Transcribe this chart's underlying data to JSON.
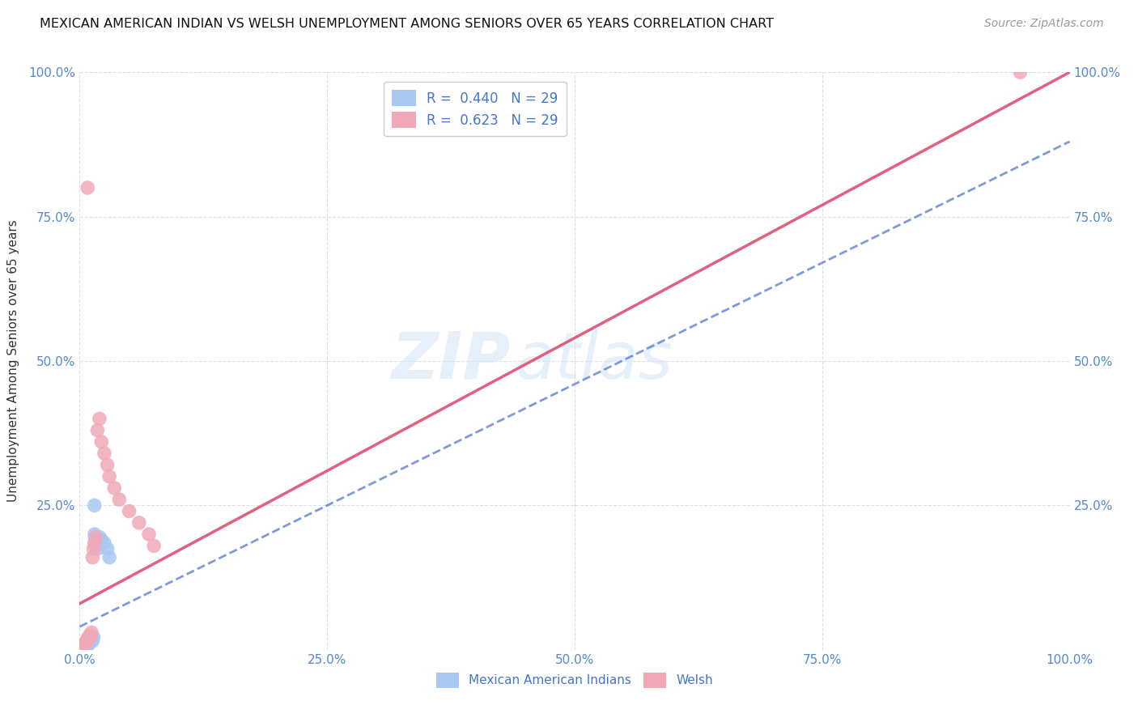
{
  "title": "MEXICAN AMERICAN INDIAN VS WELSH UNEMPLOYMENT AMONG SENIORS OVER 65 YEARS CORRELATION CHART",
  "source": "Source: ZipAtlas.com",
  "ylabel": "Unemployment Among Seniors over 65 years",
  "r_blue": 0.44,
  "r_pink": 0.623,
  "n_blue": 29,
  "n_pink": 29,
  "legend_label_blue": "Mexican American Indians",
  "legend_label_pink": "Welsh",
  "color_blue": "#a8c8f0",
  "color_pink": "#f0a8b8",
  "line_color_blue": "#5577cc",
  "line_color_pink": "#e06080",
  "watermark_zip": "ZIP",
  "watermark_atlas": "atlas",
  "xlim": [
    0,
    1.0
  ],
  "ylim": [
    0,
    1.0
  ],
  "blue_x": [
    0.002,
    0.003,
    0.003,
    0.004,
    0.004,
    0.005,
    0.005,
    0.006,
    0.006,
    0.007,
    0.007,
    0.008,
    0.008,
    0.009,
    0.01,
    0.01,
    0.011,
    0.012,
    0.013,
    0.014,
    0.015,
    0.016,
    0.018,
    0.02,
    0.022,
    0.025,
    0.028,
    0.03,
    0.015
  ],
  "blue_y": [
    0.002,
    0.003,
    0.005,
    0.004,
    0.006,
    0.005,
    0.008,
    0.007,
    0.01,
    0.006,
    0.009,
    0.008,
    0.012,
    0.01,
    0.015,
    0.012,
    0.018,
    0.02,
    0.015,
    0.022,
    0.2,
    0.185,
    0.175,
    0.195,
    0.19,
    0.185,
    0.175,
    0.16,
    0.25
  ],
  "pink_x": [
    0.002,
    0.003,
    0.004,
    0.005,
    0.006,
    0.007,
    0.008,
    0.009,
    0.01,
    0.011,
    0.012,
    0.013,
    0.014,
    0.015,
    0.016,
    0.018,
    0.02,
    0.022,
    0.025,
    0.028,
    0.03,
    0.035,
    0.04,
    0.05,
    0.06,
    0.07,
    0.075,
    0.008,
    0.95
  ],
  "pink_y": [
    0.003,
    0.005,
    0.008,
    0.01,
    0.012,
    0.015,
    0.02,
    0.018,
    0.025,
    0.022,
    0.03,
    0.16,
    0.175,
    0.185,
    0.195,
    0.38,
    0.4,
    0.36,
    0.34,
    0.32,
    0.3,
    0.28,
    0.26,
    0.24,
    0.22,
    0.2,
    0.18,
    0.8,
    1.0
  ],
  "pink_line_x0": 0.0,
  "pink_line_y0": 0.08,
  "pink_line_x1": 1.0,
  "pink_line_y1": 1.0,
  "blue_line_x0": 0.0,
  "blue_line_y0": 0.04,
  "blue_line_x1": 1.0,
  "blue_line_y1": 0.88
}
